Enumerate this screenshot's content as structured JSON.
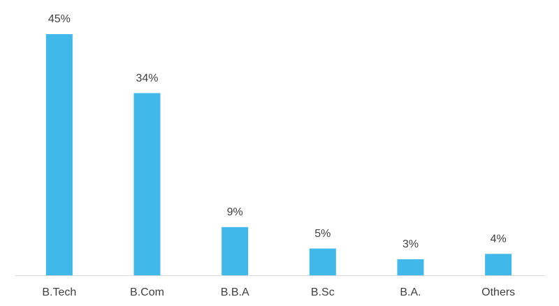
{
  "chart_data": {
    "type": "bar",
    "categories": [
      "B.Tech",
      "B.Com",
      "B.B.A",
      "B.Sc",
      "B.A.",
      "Others"
    ],
    "values": [
      45,
      34,
      9,
      5,
      3,
      4
    ],
    "value_labels": [
      "45%",
      "34%",
      "9%",
      "5%",
      "3%",
      "4%"
    ],
    "color": "#41b8ea"
  }
}
